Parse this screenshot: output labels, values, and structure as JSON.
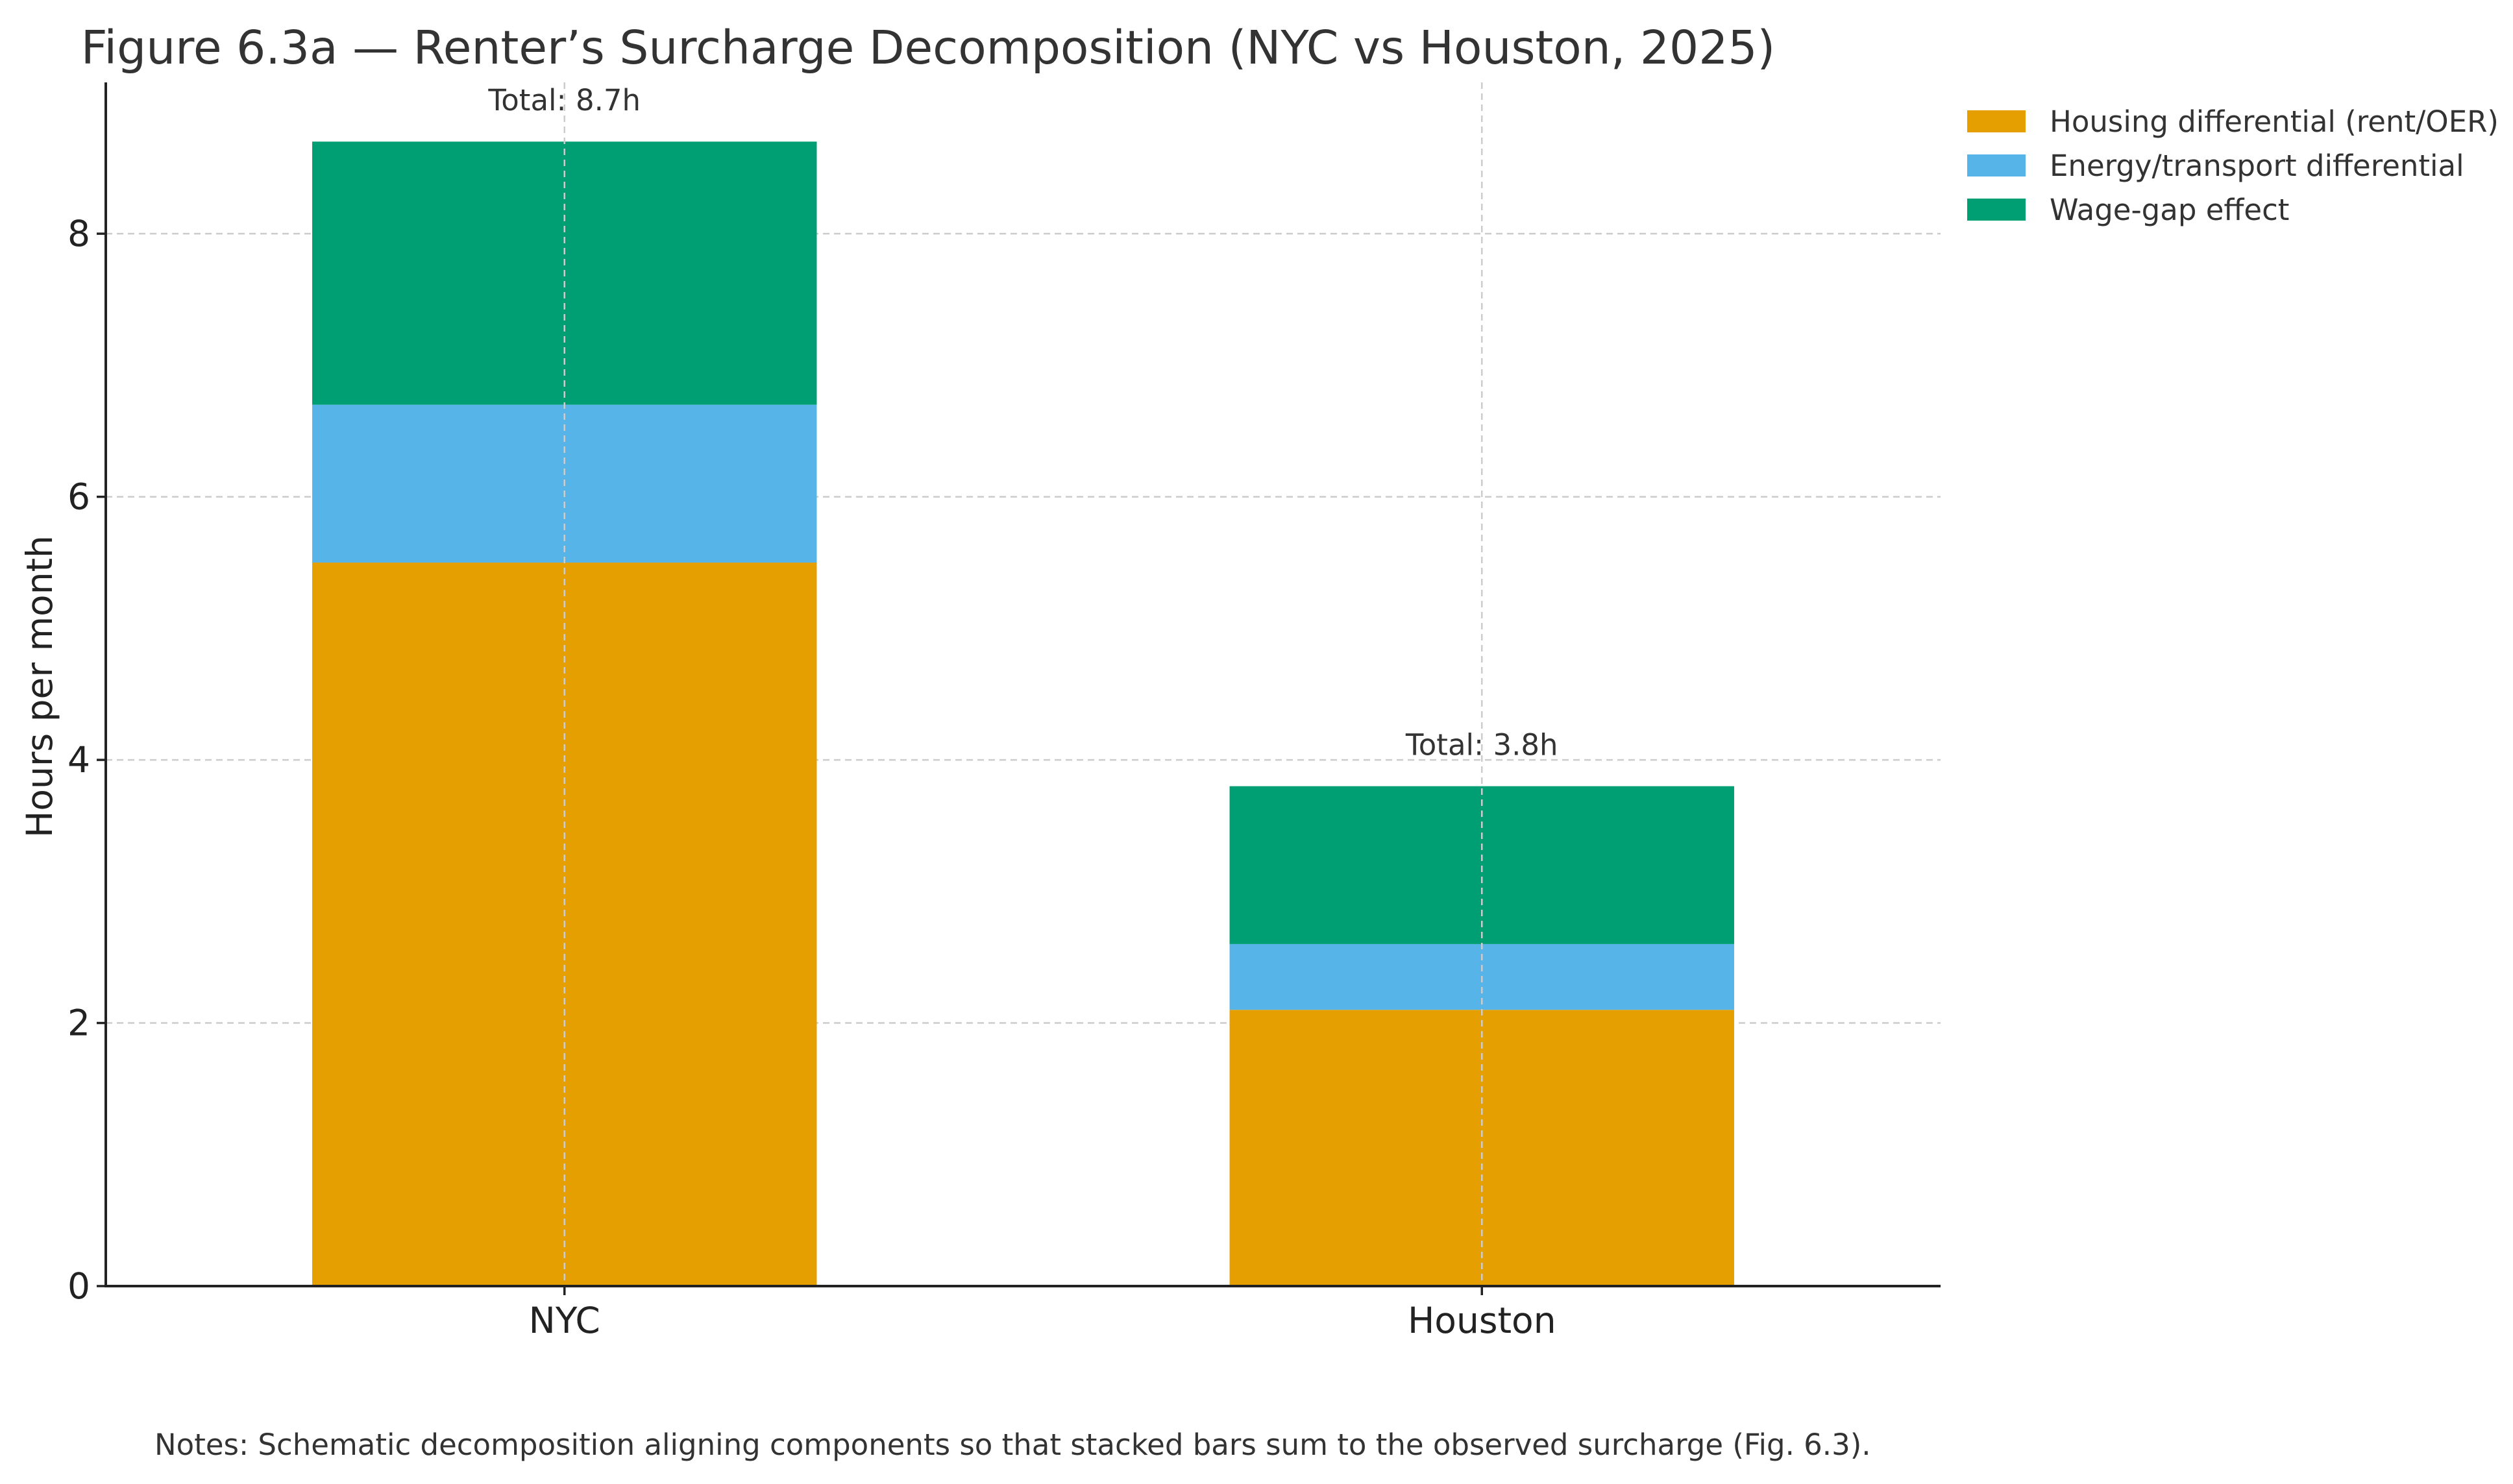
{
  "chart_data": {
    "type": "bar",
    "stacked": true,
    "title": "Figure 6.3a — Renter’s Surcharge Decomposition (NYC vs Houston, 2025)",
    "xlabel": "",
    "ylabel": "Hours per month",
    "ylim": [
      0,
      9.15
    ],
    "yticks": [
      0,
      2,
      4,
      6,
      8
    ],
    "grid": true,
    "legend_position": "top-right",
    "categories": [
      "NYC",
      "Houston"
    ],
    "series": [
      {
        "name": "Housing differential (rent/OER)",
        "color": "#E69F00",
        "values": [
          5.5,
          2.1
        ]
      },
      {
        "name": "Energy/transport differential",
        "color": "#56B4E9",
        "values": [
          1.2,
          0.5
        ]
      },
      {
        "name": "Wage-gap effect",
        "color": "#009E73",
        "values": [
          2.0,
          1.2
        ]
      }
    ],
    "total_labels": [
      "Total: 8.7h",
      "Total: 3.8h"
    ],
    "notes": "Notes: Schematic decomposition aligning components so that stacked bars sum to the observed surcharge (Fig. 6.3)."
  }
}
